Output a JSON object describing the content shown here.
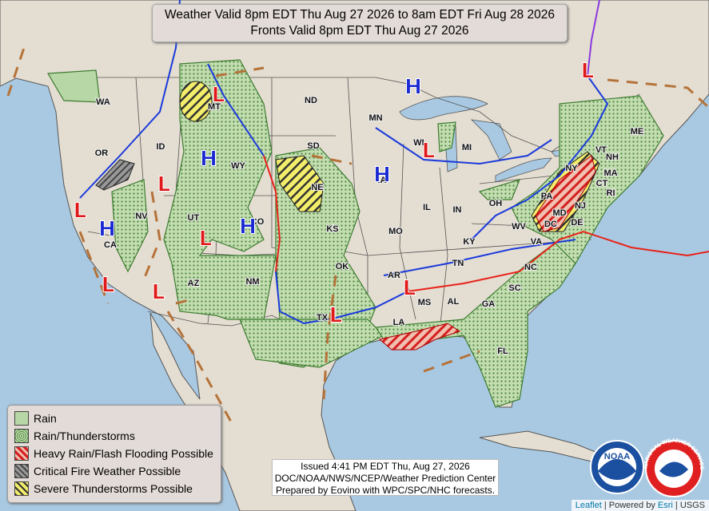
{
  "header": {
    "title": [
      "Weather Valid 8pm EDT Thu Aug 27 2026 to 8am EDT Fri Aug 28 2026",
      "Fronts Valid 8pm EDT Thu Aug 27 2026"
    ]
  },
  "states": [
    "WA",
    "OR",
    "CA",
    "NV",
    "ID",
    "MT",
    "WY",
    "UT",
    "AZ",
    "CO",
    "NM",
    "ND",
    "SD",
    "NE",
    "KS",
    "OK",
    "TX",
    "MN",
    "IA",
    "MO",
    "AR",
    "LA",
    "WI",
    "IL",
    "IN",
    "MI",
    "OH",
    "KY",
    "TN",
    "MS",
    "AL",
    "GA",
    "FL",
    "SC",
    "NC",
    "VA",
    "WV",
    "PA",
    "NY",
    "VT",
    "NH",
    "ME",
    "MA",
    "CT",
    "RI",
    "NJ",
    "DE",
    "MD",
    "DC"
  ],
  "pressure_centers": {
    "highs": [
      "H",
      "H",
      "H",
      "H",
      "H"
    ],
    "lows": [
      "L",
      "L",
      "L",
      "L",
      "L",
      "L",
      "L",
      "L",
      "L",
      "L"
    ]
  },
  "legend": {
    "items": [
      "Rain",
      "Rain/Thunderstorms",
      "Heavy Rain/Flash Flooding Possible",
      "Critical Fire Weather Possible",
      "Severe Thunderstorms Possible"
    ]
  },
  "footer": {
    "lines": [
      "Issued  4:41 PM EDT  Thu, Aug 27, 2026",
      "DOC/NOAA/NWS/NCEP/Weather Prediction Center",
      "Prepared by Eovino with WPC/SPC/NHC forecasts."
    ]
  },
  "logos": {
    "noaa": "NOAA",
    "nws": "NATIONAL WEATHER SERVICE"
  },
  "attribution": {
    "leaflet": "Leaflet",
    "powered": " | Powered by ",
    "esri": "Esri",
    "usgs": " | USGS"
  }
}
